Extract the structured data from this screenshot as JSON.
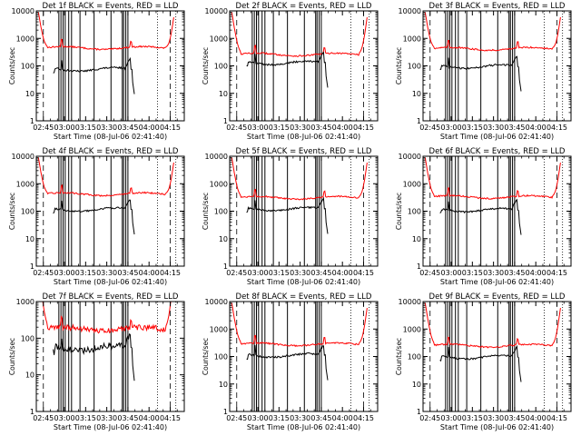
{
  "chart_data": [
    {
      "type": "line",
      "title": "Det 1f BLACK = Events, RED = LLD",
      "xlabel": "Start Time (08-Jul-06 02:41:40)",
      "ylabel": "Counts/sec",
      "yscale": "log",
      "ylim": [
        1,
        10000
      ],
      "x_ticks": [
        "02:45",
        "03:00",
        "03:15",
        "03:30",
        "03:45",
        "04:00",
        "04:15"
      ],
      "y_ticks": [
        "1",
        "10",
        "100",
        "1000",
        "10000"
      ],
      "series": [
        {
          "name": "Events",
          "color": "#000000",
          "base": 75
        },
        {
          "name": "LLD",
          "color": "#ff0000",
          "base": 450
        }
      ]
    },
    {
      "type": "line",
      "title": "Det 2f BLACK = Events, RED = LLD",
      "xlabel": "Start Time (08-Jul-06 02:41:40)",
      "ylabel": "Counts/sec",
      "yscale": "log",
      "ylim": [
        1,
        10000
      ],
      "x_ticks": [
        "02:45",
        "03:00",
        "03:15",
        "03:30",
        "03:45",
        "04:00",
        "04:15"
      ],
      "y_ticks": [
        "1",
        "10",
        "100",
        "1000",
        "10000"
      ],
      "series": [
        {
          "name": "Events",
          "color": "#000000",
          "base": 130
        },
        {
          "name": "LLD",
          "color": "#ff0000",
          "base": 260
        }
      ]
    },
    {
      "type": "line",
      "title": "Det 3f BLACK = Events, RED = LLD",
      "xlabel": "Start Time (08-Jul-06 02:41:40)",
      "ylabel": "Counts/sec",
      "yscale": "log",
      "ylim": [
        1,
        10000
      ],
      "x_ticks": [
        "02:45",
        "03:00",
        "03:15",
        "03:30",
        "03:45",
        "04:00",
        "04:15"
      ],
      "y_ticks": [
        "1",
        "10",
        "100",
        "1000",
        "10000"
      ],
      "series": [
        {
          "name": "Events",
          "color": "#000000",
          "base": 95
        },
        {
          "name": "LLD",
          "color": "#ff0000",
          "base": 420
        }
      ]
    },
    {
      "type": "line",
      "title": "Det 4f BLACK = Events, RED = LLD",
      "xlabel": "Start Time (08-Jul-06 02:41:40)",
      "ylabel": "Counts/sec",
      "yscale": "log",
      "ylim": [
        1,
        10000
      ],
      "x_ticks": [
        "02:45",
        "03:00",
        "03:15",
        "03:30",
        "03:45",
        "04:00",
        "04:15"
      ],
      "y_ticks": [
        "1",
        "10",
        "100",
        "1000",
        "10000"
      ],
      "series": [
        {
          "name": "Events",
          "color": "#000000",
          "base": 115
        },
        {
          "name": "LLD",
          "color": "#ff0000",
          "base": 420
        }
      ]
    },
    {
      "type": "line",
      "title": "Det 5f BLACK = Events, RED = LLD",
      "xlabel": "Start Time (08-Jul-06 02:41:40)",
      "ylabel": "Counts/sec",
      "yscale": "log",
      "ylim": [
        1,
        10000
      ],
      "x_ticks": [
        "02:45",
        "03:00",
        "03:15",
        "03:30",
        "03:45",
        "04:00",
        "04:15"
      ],
      "y_ticks": [
        "1",
        "10",
        "100",
        "1000",
        "10000"
      ],
      "series": [
        {
          "name": "Events",
          "color": "#000000",
          "base": 120
        },
        {
          "name": "LLD",
          "color": "#ff0000",
          "base": 310
        }
      ]
    },
    {
      "type": "line",
      "title": "Det 6f BLACK = Events, RED = LLD",
      "xlabel": "Start Time (08-Jul-06 02:41:40)",
      "ylabel": "Counts/sec",
      "yscale": "log",
      "ylim": [
        1,
        10000
      ],
      "x_ticks": [
        "02:45",
        "03:00",
        "03:15",
        "03:30",
        "03:45",
        "04:00",
        "04:15"
      ],
      "y_ticks": [
        "1",
        "10",
        "100",
        "1000",
        "10000"
      ],
      "series": [
        {
          "name": "Events",
          "color": "#000000",
          "base": 110
        },
        {
          "name": "LLD",
          "color": "#ff0000",
          "base": 330
        }
      ]
    },
    {
      "type": "line",
      "title": "Det 7f BLACK = Events, RED = LLD",
      "xlabel": "Start Time (08-Jul-06 02:41:40)",
      "ylabel": "Counts/sec",
      "yscale": "log",
      "ylim": [
        1,
        1000
      ],
      "x_ticks": [
        "02:45",
        "03:00",
        "03:15",
        "03:30",
        "03:45",
        "04:00",
        "04:15"
      ],
      "y_ticks": [
        "1",
        "10",
        "100",
        "1000"
      ],
      "series": [
        {
          "name": "Events",
          "color": "#000000",
          "base": 55
        },
        {
          "name": "LLD",
          "color": "#ff0000",
          "base": 180
        }
      ]
    },
    {
      "type": "line",
      "title": "Det 8f BLACK = Events, RED = LLD",
      "xlabel": "Start Time (08-Jul-06 02:41:40)",
      "ylabel": "Counts/sec",
      "yscale": "log",
      "ylim": [
        1,
        10000
      ],
      "x_ticks": [
        "02:45",
        "03:00",
        "03:15",
        "03:30",
        "03:45",
        "04:00",
        "04:15"
      ],
      "y_ticks": [
        "1",
        "10",
        "100",
        "1000",
        "10000"
      ],
      "series": [
        {
          "name": "Events",
          "color": "#000000",
          "base": 110
        },
        {
          "name": "LLD",
          "color": "#ff0000",
          "base": 280
        }
      ]
    },
    {
      "type": "line",
      "title": "Det 9f BLACK = Events, RED = LLD",
      "xlabel": "Start Time (08-Jul-06 02:41:40)",
      "ylabel": "Counts/sec",
      "yscale": "log",
      "ylim": [
        1,
        10000
      ],
      "x_ticks": [
        "02:45",
        "03:00",
        "03:15",
        "03:30",
        "03:45",
        "04:00",
        "04:15"
      ],
      "y_ticks": [
        "1",
        "10",
        "100",
        "1000",
        "10000"
      ],
      "series": [
        {
          "name": "Events",
          "color": "#000000",
          "base": 95
        },
        {
          "name": "LLD",
          "color": "#ff0000",
          "base": 250
        }
      ]
    }
  ]
}
